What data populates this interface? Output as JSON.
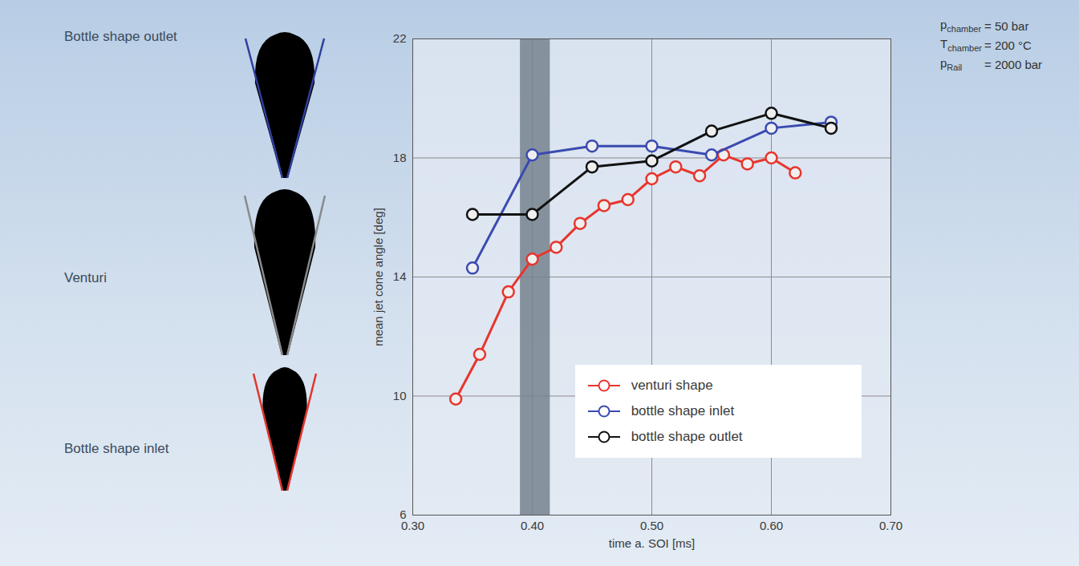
{
  "chart_data": {
    "type": "line",
    "x_label": "time a. SOI [ms]",
    "y_label": "mean jet cone angle [deg]",
    "xlim": [
      0.3,
      0.7
    ],
    "xticks": [
      {
        "value": 0.3,
        "label": "0.30"
      },
      {
        "value": 0.4,
        "label": "0.40"
      },
      {
        "value": 0.5,
        "label": "0.50"
      },
      {
        "value": 0.6,
        "label": "0.60"
      },
      {
        "value": 0.7,
        "label": "0.70"
      }
    ],
    "ylim": [
      6,
      22
    ],
    "yticks": [
      6,
      10,
      14,
      18,
      22
    ],
    "grid": true,
    "legend": "lower right",
    "shaded_band": [
      0.39,
      0.415
    ],
    "conditions": [
      {
        "symbol": "p",
        "subscript": "chamber",
        "value": 50,
        "unit": "bar"
      },
      {
        "symbol": "T",
        "subscript": "chamber",
        "value": 200,
        "unit": "°C"
      },
      {
        "symbol": "p",
        "subscript": "Rail",
        "value": 2000,
        "unit": "bar"
      }
    ],
    "spray_images": [
      {
        "label": "Bottle shape outlet",
        "color": "#2f3f9c"
      },
      {
        "label": "Venturi",
        "color": "#8a8a8a"
      },
      {
        "label": "Bottle shape inlet",
        "color": "#e2352c"
      }
    ],
    "series": [
      {
        "name": "venturi shape",
        "color": "#e8352e",
        "marker": "circle",
        "x": [
          0.336,
          0.356,
          0.38,
          0.4,
          0.42,
          0.44,
          0.46,
          0.48,
          0.5,
          0.52,
          0.54,
          0.56,
          0.58,
          0.6,
          0.62
        ],
        "values": [
          9.9,
          11.4,
          13.5,
          14.6,
          15.0,
          15.8,
          16.4,
          16.6,
          17.3,
          17.7,
          17.4,
          18.1,
          17.8,
          18.0,
          17.5
        ]
      },
      {
        "name": "bottle shape inlet",
        "color": "#3a4bb0",
        "marker": "circle",
        "x": [
          0.35,
          0.4,
          0.45,
          0.5,
          0.55,
          0.6,
          0.65
        ],
        "values": [
          14.3,
          18.1,
          18.4,
          18.4,
          18.1,
          19.0,
          19.2
        ]
      },
      {
        "name": "bottle shape outlet",
        "color": "#111111",
        "marker": "circle",
        "x": [
          0.35,
          0.4,
          0.45,
          0.5,
          0.55,
          0.6,
          0.65
        ],
        "values": [
          16.1,
          16.1,
          17.7,
          17.9,
          18.9,
          19.5,
          19.0
        ]
      }
    ]
  }
}
